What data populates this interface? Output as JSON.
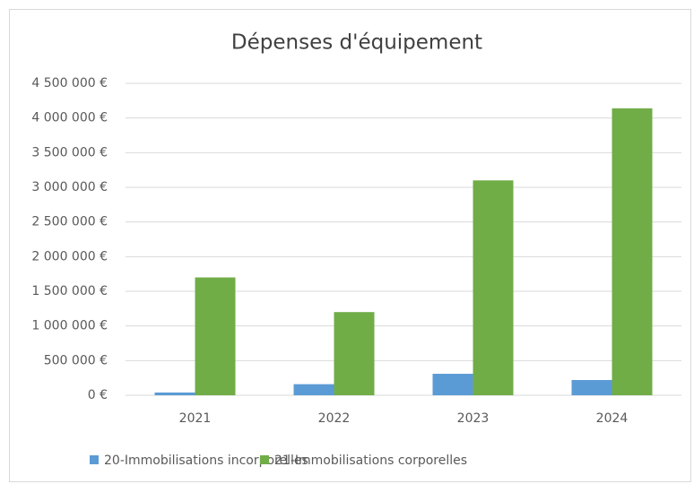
{
  "chart_data": {
    "type": "bar",
    "title": "Dépenses d'équipement",
    "categories": [
      "2021",
      "2022",
      "2023",
      "2024"
    ],
    "series": [
      {
        "name": "20-Immobilisations incorporelles",
        "color": "#5b9bd5",
        "values": [
          40000,
          160000,
          310000,
          220000
        ]
      },
      {
        "name": "21-Immobilisations corporelles",
        "color": "#70ad47",
        "values": [
          1700000,
          1200000,
          3100000,
          4140000
        ]
      }
    ],
    "ylim": [
      0,
      4500000
    ],
    "yticks": [
      {
        "value": 0,
        "label": "0 €"
      },
      {
        "value": 500000,
        "label": "500 000 €"
      },
      {
        "value": 1000000,
        "label": "1 000 000 €"
      },
      {
        "value": 1500000,
        "label": "1 500 000 €"
      },
      {
        "value": 2000000,
        "label": "2 000 000 €"
      },
      {
        "value": 2500000,
        "label": "2 500 000 €"
      },
      {
        "value": 3000000,
        "label": "3 000 000 €"
      },
      {
        "value": 3500000,
        "label": "3 500 000 €"
      },
      {
        "value": 4000000,
        "label": "4 000 000 €"
      },
      {
        "value": 4500000,
        "label": "4 500 000 €"
      }
    ],
    "grid": true,
    "legend": "bottom"
  }
}
